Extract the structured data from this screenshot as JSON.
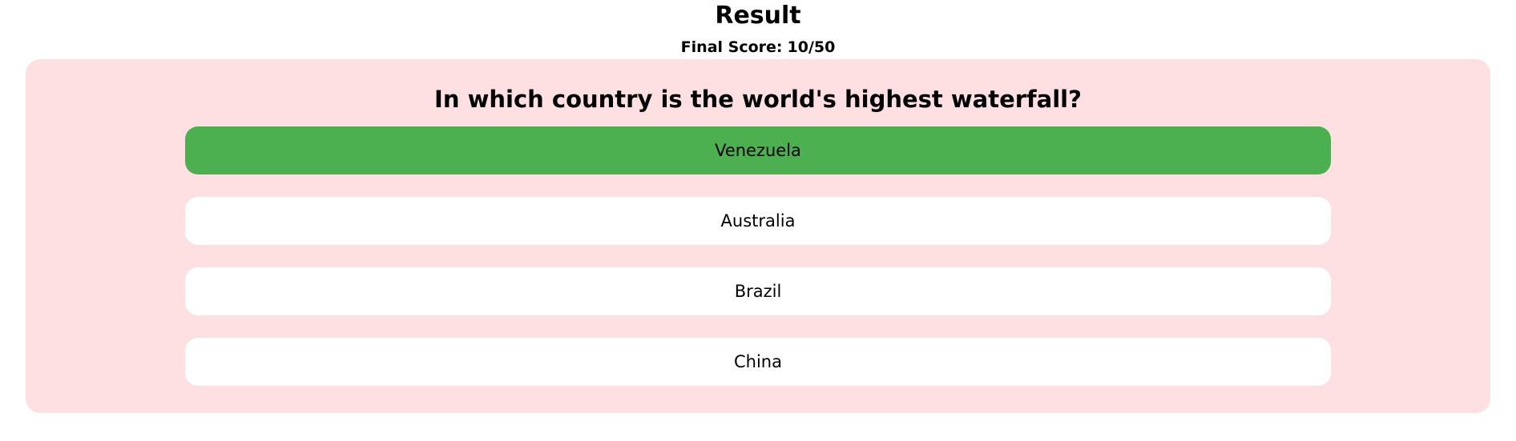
{
  "header": {
    "title": "Result",
    "score_label": "Final Score:",
    "score_value": "10/50"
  },
  "quiz": {
    "question": "In which country is the world's highest waterfall?",
    "options": [
      {
        "label": "Venezuela",
        "state": "correct"
      },
      {
        "label": "Australia",
        "state": "default"
      },
      {
        "label": "Brazil",
        "state": "default"
      },
      {
        "label": "China",
        "state": "default"
      }
    ]
  },
  "colors": {
    "card_background": "#ffe0e2",
    "correct_option": "#4caf50",
    "default_option": "#ffffff"
  }
}
